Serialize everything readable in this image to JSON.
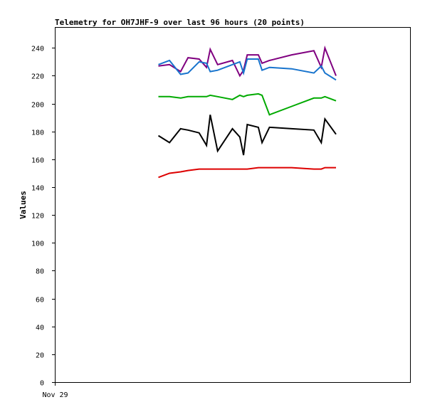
{
  "chart_data": {
    "type": "line",
    "title": "Telemetry for OH7JHF-9 over last 96 hours (20 points)",
    "xlabel": "",
    "ylabel": "Values",
    "x_tick_labels": [
      {
        "label": "Nov 29",
        "x": 0
      }
    ],
    "xlim": [
      0,
      96
    ],
    "ylim": [
      0,
      255
    ],
    "yticks": [
      0,
      20,
      40,
      60,
      80,
      100,
      120,
      140,
      160,
      180,
      200,
      220,
      240
    ],
    "grid": false,
    "legend": "none",
    "series": [
      {
        "color": "#800080",
        "x": [
          28,
          31,
          34,
          36,
          39,
          41,
          42,
          44,
          48,
          50,
          51,
          52,
          55,
          56,
          58,
          64,
          70,
          72,
          73,
          76
        ],
        "values": [
          227,
          228,
          223,
          233,
          232,
          226,
          239,
          228,
          231,
          220,
          224,
          235,
          235,
          229,
          231,
          235,
          238,
          226,
          240,
          220
        ]
      },
      {
        "color": "#1874cd",
        "x": [
          28,
          31,
          34,
          36,
          39,
          41,
          42,
          44,
          48,
          50,
          51,
          52,
          55,
          56,
          58,
          64,
          70,
          72,
          73,
          76
        ],
        "values": [
          228,
          231,
          221,
          222,
          230,
          229,
          223,
          224,
          228,
          230,
          222,
          232,
          232,
          224,
          226,
          225,
          222,
          227,
          222,
          217
        ]
      },
      {
        "color": "#00aa00",
        "x": [
          28,
          31,
          34,
          36,
          39,
          41,
          42,
          44,
          48,
          50,
          51,
          52,
          55,
          56,
          58,
          64,
          70,
          72,
          73,
          76
        ],
        "values": [
          205,
          205,
          204,
          205,
          205,
          205,
          206,
          205,
          203,
          206,
          205,
          206,
          207,
          206,
          192,
          198,
          204,
          204,
          205,
          202
        ]
      },
      {
        "color": "#000000",
        "x": [
          28,
          31,
          34,
          36,
          39,
          41,
          42,
          44,
          48,
          50,
          51,
          52,
          55,
          56,
          58,
          64,
          70,
          72,
          73,
          76
        ],
        "values": [
          177,
          172,
          182,
          181,
          179,
          170,
          192,
          166,
          182,
          176,
          163,
          185,
          183,
          172,
          183,
          182,
          181,
          172,
          189,
          178
        ]
      },
      {
        "color": "#dd0000",
        "x": [
          28,
          31,
          34,
          36,
          39,
          41,
          42,
          44,
          48,
          50,
          51,
          52,
          55,
          56,
          58,
          64,
          70,
          72,
          73,
          76
        ],
        "values": [
          147,
          150,
          151,
          152,
          153,
          153,
          153,
          153,
          153,
          153,
          153,
          153,
          154,
          154,
          154,
          154,
          153,
          153,
          154,
          154
        ]
      }
    ]
  }
}
